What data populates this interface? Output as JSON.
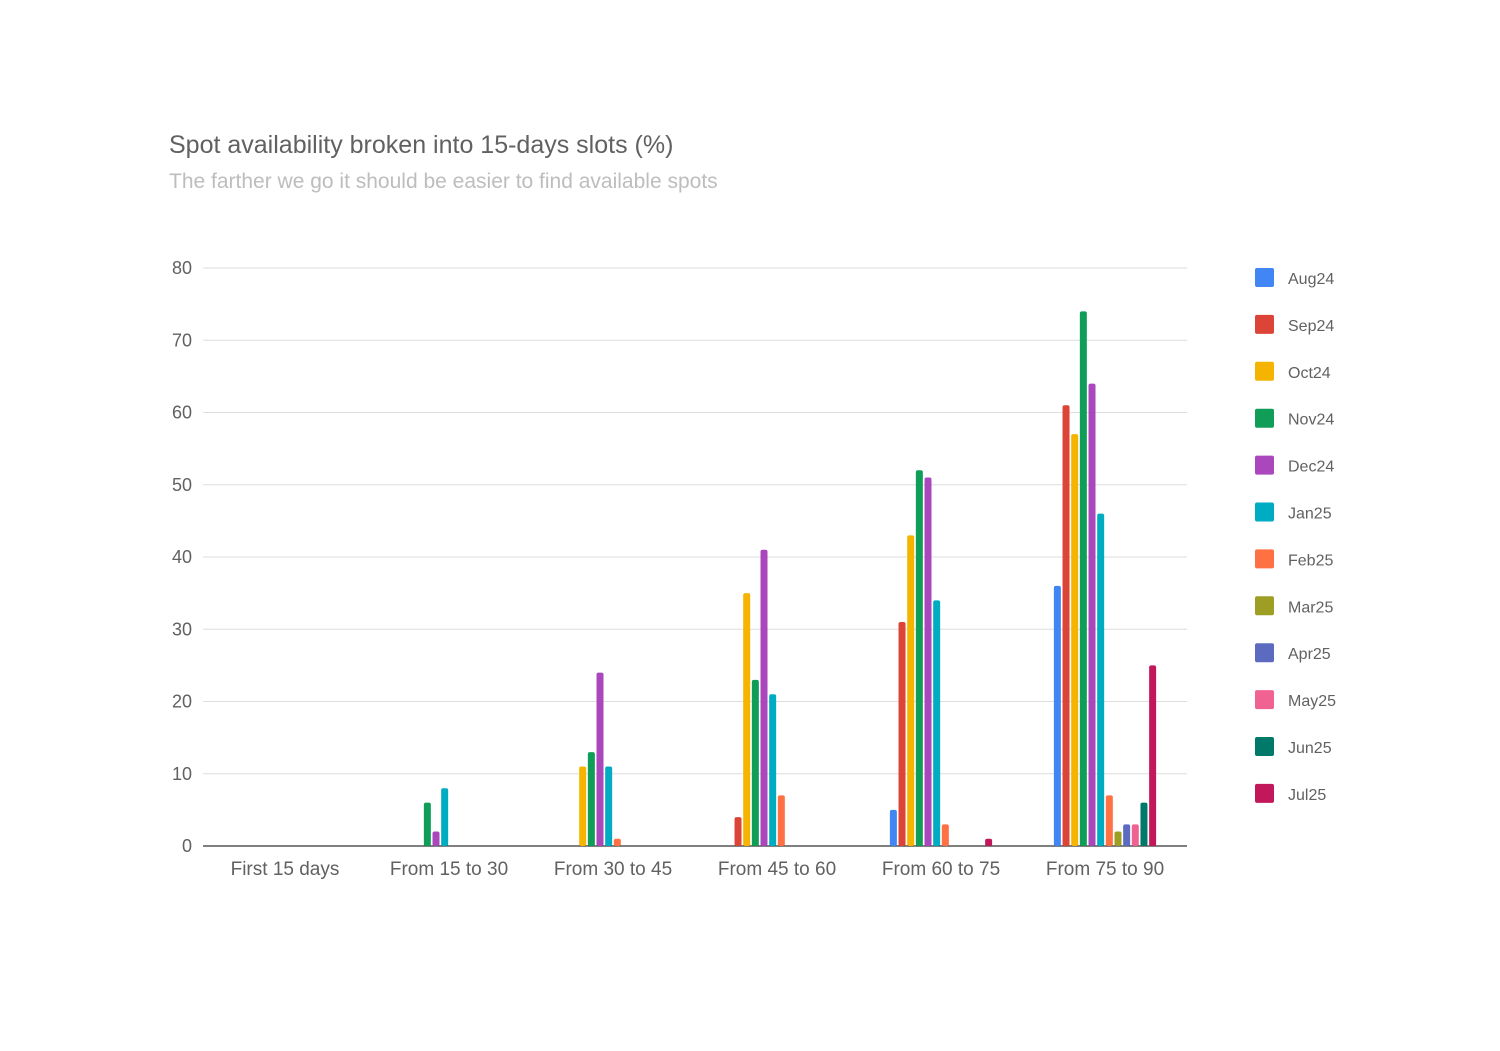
{
  "chart_data": {
    "type": "bar",
    "title": "Spot availability broken into 15-days slots (%)",
    "subtitle": "The farther we go it should be easier to find available spots",
    "xlabel": "",
    "ylabel": "",
    "ylim": [
      0,
      80
    ],
    "yticks": [
      0,
      10,
      20,
      30,
      40,
      50,
      60,
      70,
      80
    ],
    "grid": true,
    "legend_position": "right",
    "categories": [
      "First 15 days",
      "From 15 to 30",
      "From 30 to 45",
      "From 45 to 60",
      "From 60 to 75",
      "From 75 to 90"
    ],
    "series": [
      {
        "name": "Aug24",
        "color": "#4285f4",
        "values": [
          0,
          0,
          0,
          0,
          5,
          36
        ]
      },
      {
        "name": "Sep24",
        "color": "#db4437",
        "values": [
          0,
          0,
          0,
          4,
          31,
          61
        ]
      },
      {
        "name": "Oct24",
        "color": "#f4b400",
        "values": [
          0,
          0,
          11,
          35,
          43,
          57
        ]
      },
      {
        "name": "Nov24",
        "color": "#0f9d58",
        "values": [
          0,
          6,
          13,
          23,
          52,
          74
        ]
      },
      {
        "name": "Dec24",
        "color": "#ab47bc",
        "values": [
          0,
          2,
          24,
          41,
          51,
          64
        ]
      },
      {
        "name": "Jan25",
        "color": "#00acc1",
        "values": [
          0,
          8,
          11,
          21,
          34,
          46
        ]
      },
      {
        "name": "Feb25",
        "color": "#ff7043",
        "values": [
          0,
          0,
          1,
          7,
          3,
          7
        ]
      },
      {
        "name": "Mar25",
        "color": "#9e9d24",
        "values": [
          0,
          0,
          0,
          0,
          0,
          2
        ]
      },
      {
        "name": "Apr25",
        "color": "#5c6bc0",
        "values": [
          0,
          0,
          0,
          0,
          0,
          3
        ]
      },
      {
        "name": "May25",
        "color": "#f06292",
        "values": [
          0,
          0,
          0,
          0,
          0,
          3
        ]
      },
      {
        "name": "Jun25",
        "color": "#00796b",
        "values": [
          0,
          0,
          0,
          0,
          0,
          6
        ]
      },
      {
        "name": "Jul25",
        "color": "#c2185b",
        "values": [
          0,
          0,
          0,
          0,
          1,
          25
        ]
      }
    ]
  }
}
